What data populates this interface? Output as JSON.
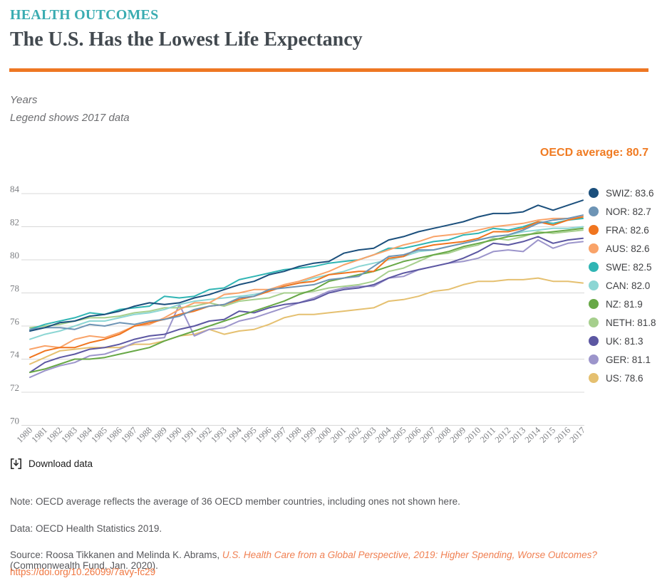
{
  "header": {
    "eyebrow": "HEALTH OUTCOMES",
    "title": "The U.S. Has the Lowest Life Expectancy"
  },
  "subtitle": {
    "unit_label": "Years",
    "legend_note": "Legend shows 2017 data"
  },
  "annotation": {
    "oecd_average": "OECD average: 80.7"
  },
  "colors": {
    "accent_orange": "#ee7723",
    "eyebrow_teal": "#3aacb1",
    "title_slate": "#42494f",
    "grid": "#d8d8d8",
    "tick_text": "#7d7f83",
    "link_orange": "#f0763f"
  },
  "download": {
    "label": "Download data"
  },
  "footnotes": {
    "note": "Note: OECD average reflects the average of 36 OECD member countries, including ones not shown here.",
    "data": "Data: OECD Health Statistics 2019.",
    "source_prefix": "Source: Roosa Tikkanen and Melinda K. Abrams, ",
    "source_citation": "U.S. Health Care from a Global Perspective, 2019: Higher Spending, Worse Outcomes?",
    "source_suffix": " (Commonwealth Fund, Jan. 2020).",
    "doi": "https://doi.org/10.26099/7avy-fc29"
  },
  "chart_data": {
    "type": "line",
    "title": "The U.S. Has the Lowest Life Expectancy",
    "ylabel": "Years",
    "xlabel": "",
    "ylim": [
      70,
      84
    ],
    "yticks": [
      70,
      72,
      74,
      76,
      78,
      80,
      82,
      84
    ],
    "grid": true,
    "legend_position": "right",
    "oecd_average": 80.7,
    "x": [
      1980,
      1981,
      1982,
      1983,
      1984,
      1985,
      1986,
      1987,
      1988,
      1989,
      1990,
      1991,
      1992,
      1993,
      1994,
      1995,
      1996,
      1997,
      1998,
      1999,
      2000,
      2001,
      2002,
      2003,
      2004,
      2005,
      2006,
      2007,
      2008,
      2009,
      2010,
      2011,
      2012,
      2013,
      2014,
      2015,
      2016,
      2017
    ],
    "series": [
      {
        "name": "SWIZ",
        "legend_label": "SWIZ: 83.6",
        "value_2017": 83.6,
        "color": "#1b4f7c",
        "values": [
          75.7,
          75.9,
          76.2,
          76.3,
          76.6,
          76.7,
          76.9,
          77.2,
          77.4,
          77.3,
          77.4,
          77.7,
          77.9,
          78.2,
          78.5,
          78.7,
          79.1,
          79.3,
          79.6,
          79.8,
          79.9,
          80.4,
          80.6,
          80.7,
          81.2,
          81.4,
          81.7,
          81.9,
          82.1,
          82.3,
          82.6,
          82.8,
          82.8,
          82.9,
          83.3,
          83.0,
          83.3,
          83.6
        ]
      },
      {
        "name": "NOR",
        "legend_label": "NOR: 82.7",
        "value_2017": 82.7,
        "color": "#6d94b5",
        "values": [
          75.8,
          75.9,
          75.9,
          75.8,
          76.1,
          76.0,
          76.2,
          76.1,
          76.3,
          76.4,
          76.6,
          77.0,
          77.2,
          77.3,
          77.7,
          77.8,
          78.2,
          78.3,
          78.4,
          78.5,
          78.8,
          78.9,
          79.0,
          79.6,
          80.2,
          80.3,
          80.6,
          80.6,
          80.8,
          81.0,
          81.2,
          81.4,
          81.5,
          81.8,
          82.2,
          82.4,
          82.5,
          82.7
        ]
      },
      {
        "name": "FRA",
        "legend_label": "FRA: 82.6",
        "value_2017": 82.6,
        "color": "#f0751f",
        "values": [
          74.1,
          74.5,
          74.7,
          74.7,
          75.0,
          75.2,
          75.5,
          76.0,
          76.2,
          76.4,
          76.7,
          76.9,
          77.2,
          77.3,
          77.6,
          77.8,
          78.1,
          78.4,
          78.6,
          78.7,
          79.1,
          79.2,
          79.3,
          79.3,
          80.1,
          80.2,
          80.7,
          80.9,
          81.0,
          81.1,
          81.3,
          81.7,
          81.7,
          81.9,
          82.3,
          82.1,
          82.4,
          82.6
        ]
      },
      {
        "name": "AUS",
        "legend_label": "AUS: 82.6",
        "value_2017": 82.6,
        "color": "#f9a369",
        "values": [
          74.6,
          74.8,
          74.7,
          75.2,
          75.4,
          75.3,
          75.6,
          76.0,
          76.1,
          76.5,
          77.0,
          77.4,
          77.4,
          77.9,
          78.0,
          78.2,
          78.2,
          78.5,
          78.7,
          79.0,
          79.3,
          79.7,
          80.0,
          80.3,
          80.6,
          80.9,
          81.1,
          81.4,
          81.5,
          81.6,
          81.8,
          82.0,
          82.1,
          82.2,
          82.4,
          82.5,
          82.5,
          82.6
        ]
      },
      {
        "name": "SWE",
        "legend_label": "SWE: 82.5",
        "value_2017": 82.5,
        "color": "#30b5b4",
        "values": [
          75.8,
          76.1,
          76.3,
          76.5,
          76.8,
          76.7,
          77.0,
          77.1,
          77.2,
          77.8,
          77.7,
          77.8,
          78.2,
          78.3,
          78.8,
          79.0,
          79.2,
          79.4,
          79.5,
          79.6,
          79.8,
          79.9,
          80.0,
          80.3,
          80.7,
          80.7,
          80.9,
          81.1,
          81.2,
          81.5,
          81.6,
          81.9,
          81.8,
          82.0,
          82.3,
          82.2,
          82.4,
          82.5
        ]
      },
      {
        "name": "CAN",
        "legend_label": "CAN: 82.0",
        "value_2017": 82.0,
        "color": "#8cd6d4",
        "values": [
          75.2,
          75.5,
          75.7,
          76.0,
          76.3,
          76.3,
          76.5,
          76.7,
          76.8,
          77.0,
          77.3,
          77.5,
          77.6,
          77.7,
          77.8,
          77.9,
          78.1,
          78.4,
          78.6,
          78.9,
          79.1,
          79.3,
          79.6,
          79.8,
          80.0,
          80.2,
          80.5,
          80.6,
          80.8,
          81.0,
          81.2,
          81.4,
          81.5,
          81.7,
          81.8,
          81.9,
          81.9,
          82.0
        ]
      },
      {
        "name": "NZ",
        "legend_label": "NZ: 81.9",
        "value_2017": 81.9,
        "color": "#67a846",
        "values": [
          73.2,
          73.4,
          73.7,
          74.0,
          74.0,
          74.1,
          74.3,
          74.5,
          74.7,
          75.1,
          75.4,
          75.7,
          76.0,
          76.3,
          76.6,
          76.9,
          77.2,
          77.5,
          77.9,
          78.2,
          78.7,
          78.9,
          79.1,
          79.3,
          79.6,
          79.9,
          80.1,
          80.3,
          80.5,
          80.8,
          81.0,
          81.2,
          81.4,
          81.5,
          81.6,
          81.7,
          81.8,
          81.9
        ]
      },
      {
        "name": "NETH",
        "legend_label": "NETH: 81.8",
        "value_2017": 81.8,
        "color": "#a6cf8d",
        "values": [
          75.9,
          76.0,
          76.1,
          76.3,
          76.5,
          76.5,
          76.6,
          76.8,
          76.9,
          77.1,
          77.1,
          77.2,
          77.4,
          77.2,
          77.5,
          77.6,
          77.7,
          78.0,
          78.0,
          78.1,
          78.3,
          78.4,
          78.5,
          78.7,
          79.3,
          79.5,
          79.9,
          80.3,
          80.4,
          80.7,
          80.9,
          81.3,
          81.2,
          81.4,
          81.7,
          81.6,
          81.7,
          81.8
        ]
      },
      {
        "name": "UK",
        "legend_label": "UK: 81.3",
        "value_2017": 81.3,
        "color": "#5c57a2",
        "values": [
          73.2,
          73.8,
          74.1,
          74.3,
          74.6,
          74.7,
          74.9,
          75.2,
          75.4,
          75.5,
          75.8,
          76.0,
          76.3,
          76.4,
          76.9,
          76.8,
          77.1,
          77.3,
          77.4,
          77.6,
          78.0,
          78.2,
          78.3,
          78.5,
          78.9,
          79.2,
          79.4,
          79.6,
          79.8,
          80.1,
          80.5,
          81.0,
          80.9,
          81.1,
          81.4,
          81.0,
          81.2,
          81.3
        ]
      },
      {
        "name": "GER",
        "legend_label": "GER: 81.1",
        "value_2017": 81.1,
        "color": "#9c95cb",
        "values": [
          72.9,
          73.3,
          73.6,
          73.8,
          74.2,
          74.3,
          74.6,
          75.0,
          75.2,
          75.3,
          77.3,
          75.4,
          75.8,
          75.9,
          76.3,
          76.5,
          76.8,
          77.1,
          77.4,
          77.7,
          78.1,
          78.3,
          78.4,
          78.4,
          78.9,
          79.0,
          79.4,
          79.6,
          79.8,
          79.9,
          80.1,
          80.5,
          80.6,
          80.5,
          81.2,
          80.7,
          81.0,
          81.1
        ]
      },
      {
        "name": "US",
        "legend_label": "US: 78.6",
        "value_2017": 78.6,
        "color": "#e5c070",
        "values": [
          73.7,
          74.1,
          74.5,
          74.6,
          74.7,
          74.7,
          74.7,
          74.9,
          74.9,
          75.1,
          75.4,
          75.5,
          75.8,
          75.5,
          75.7,
          75.8,
          76.1,
          76.5,
          76.7,
          76.7,
          76.8,
          76.9,
          77.0,
          77.1,
          77.5,
          77.6,
          77.8,
          78.1,
          78.2,
          78.5,
          78.7,
          78.7,
          78.8,
          78.8,
          78.9,
          78.7,
          78.7,
          78.6
        ]
      }
    ]
  }
}
